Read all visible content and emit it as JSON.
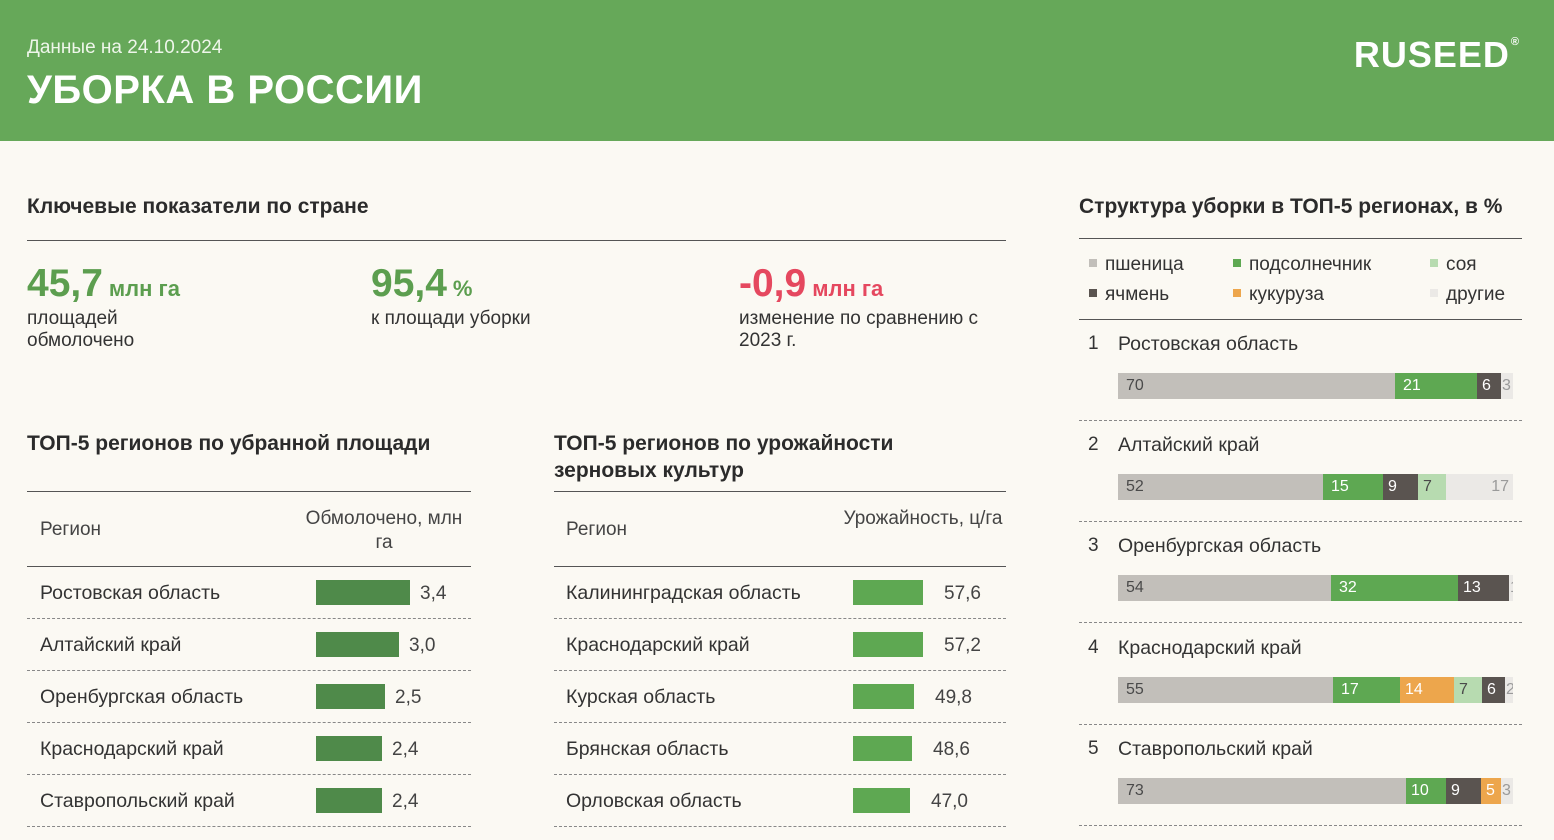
{
  "header": {
    "date": "Данные на 24.10.2024",
    "title": "УБОРКА В РОССИИ",
    "logo": "RUSEED",
    "logo_mark": "®"
  },
  "kpi": {
    "section_title": "Ключевые показатели по стране",
    "items": [
      {
        "value": "45,7",
        "unit": "млн га",
        "caption": "площадей обмолочено",
        "color": "#5c9e4f"
      },
      {
        "value": "95,4",
        "unit": "%",
        "caption": "к площади уборки",
        "color": "#5c9e4f"
      },
      {
        "value": "-0,9",
        "unit": "млн га",
        "caption": "изменение по сравнению с 2023 г.",
        "color": "#e5485f"
      }
    ]
  },
  "chart_data": [
    {
      "type": "bar",
      "title": "ТОП-5 регионов по убранной площади",
      "col_region": "Регион",
      "col_value": "Обмолочено, млн га",
      "categories": [
        "Ростовская область",
        "Алтайский край",
        "Оренбургская область",
        "Краснодарский край",
        "Ставропольский край"
      ],
      "values": [
        3.4,
        3.0,
        2.5,
        2.4,
        2.4
      ],
      "value_labels": [
        "3,4",
        "3,0",
        "2,5",
        "2,4",
        "2,4"
      ],
      "xlim": [
        0,
        3.4
      ],
      "bar_color": "#4f8a4a"
    },
    {
      "type": "bar",
      "title": "ТОП-5 регионов по урожайности зерновых культур",
      "col_region": "Регион",
      "col_value": "Урожайность, ц/га",
      "categories": [
        "Калининградская область",
        "Краснодарский край",
        "Курская область",
        "Брянская область",
        "Орловская область"
      ],
      "values": [
        57.6,
        57.2,
        49.8,
        48.6,
        47.0
      ],
      "value_labels": [
        "57,6",
        "57,2",
        "49,8",
        "48,6",
        "47,0"
      ],
      "xlim": [
        0,
        57.6
      ],
      "bar_color": "#5ea852"
    },
    {
      "type": "bar",
      "stacked": true,
      "title": "Структура уборки в ТОП-5 регионах, в %",
      "series": [
        {
          "name": "пшеница",
          "color": "#c2bfba"
        },
        {
          "name": "подсолнечник",
          "color": "#5ea852"
        },
        {
          "name": "соя",
          "color": "#b7dbb0"
        },
        {
          "name": "ячмень",
          "color": "#5a5450"
        },
        {
          "name": "кукуруза",
          "color": "#eda64c"
        },
        {
          "name": "другие",
          "color": "#ebe9e6"
        }
      ],
      "rows": [
        {
          "rank": "1",
          "region": "Ростовская область",
          "segments": [
            {
              "series": "пшеница",
              "value": 70
            },
            {
              "series": "подсолнечник",
              "value": 21
            },
            {
              "series": "ячмень",
              "value": 6
            },
            {
              "series": "другие",
              "value": 3
            }
          ]
        },
        {
          "rank": "2",
          "region": "Алтайский край",
          "segments": [
            {
              "series": "пшеница",
              "value": 52
            },
            {
              "series": "подсолнечник",
              "value": 15
            },
            {
              "series": "ячмень",
              "value": 9
            },
            {
              "series": "соя",
              "value": 7
            },
            {
              "series": "другие",
              "value": 17
            }
          ]
        },
        {
          "rank": "3",
          "region": "Оренбургская область",
          "segments": [
            {
              "series": "пшеница",
              "value": 54
            },
            {
              "series": "подсолнечник",
              "value": 32
            },
            {
              "series": "ячмень",
              "value": 13
            },
            {
              "series": "другие",
              "value": 1
            }
          ]
        },
        {
          "rank": "4",
          "region": "Краснодарский край",
          "segments": [
            {
              "series": "пшеница",
              "value": 55
            },
            {
              "series": "подсолнечник",
              "value": 17
            },
            {
              "series": "кукуруза",
              "value": 14
            },
            {
              "series": "соя",
              "value": 7
            },
            {
              "series": "ячмень",
              "value": 6
            },
            {
              "series": "другие",
              "value": 2
            }
          ]
        },
        {
          "rank": "5",
          "region": "Ставропольский край",
          "segments": [
            {
              "series": "пшеница",
              "value": 73
            },
            {
              "series": "подсолнечник",
              "value": 10
            },
            {
              "series": "ячмень",
              "value": 9
            },
            {
              "series": "кукуруза",
              "value": 5
            },
            {
              "series": "другие",
              "value": 3
            }
          ]
        }
      ]
    }
  ]
}
